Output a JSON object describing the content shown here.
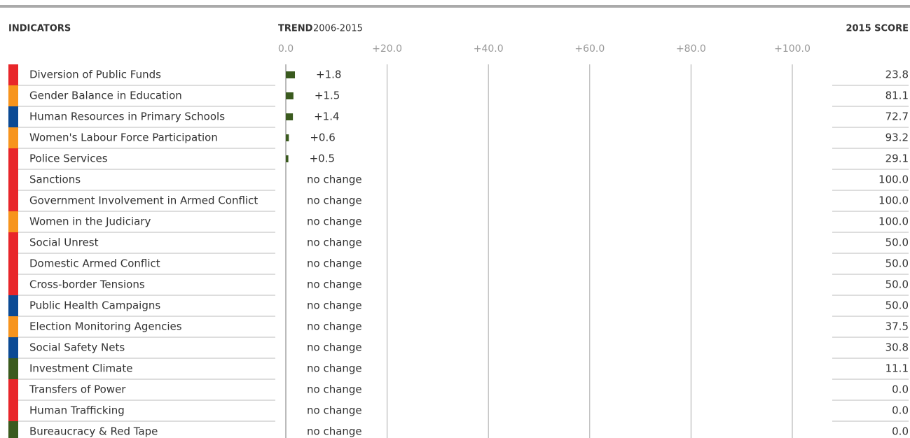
{
  "chart_data": {
    "type": "bar",
    "header_left": "INDICATORS",
    "header_trend_bold": "TREND",
    "header_trend_range": "2006-2015",
    "header_right": "2015 SCORE",
    "categories": [
      "Diversion of Public Funds",
      "Gender Balance in Education",
      "Human Resources in Primary Schools",
      "Women's Labour Force Participation",
      "Police Services",
      "Sanctions",
      "Government Involvement in Armed Conflict",
      "Women in the Judiciary",
      "Social Unrest",
      "Domestic Armed Conflict",
      "Cross-border Tensions",
      "Public Health Campaigns",
      "Election Monitoring Agencies",
      "Social Safety Nets",
      "Investment Climate",
      "Transfers of Power",
      "Human Trafficking",
      "Bureaucracy & Red Tape"
    ],
    "category_colors": [
      "#e8262a",
      "#f7941d",
      "#0b4a94",
      "#f7941d",
      "#e8262a",
      "#e8262a",
      "#e8262a",
      "#f7941d",
      "#e8262a",
      "#e8262a",
      "#e8262a",
      "#0b4a94",
      "#f7941d",
      "#0b4a94",
      "#3a5a1e",
      "#e8262a",
      "#e8262a",
      "#3a5a1e"
    ],
    "values": [
      1.8,
      1.5,
      1.4,
      0.6,
      0.5,
      0,
      0,
      0,
      0,
      0,
      0,
      0,
      0,
      0,
      0,
      0,
      0,
      0
    ],
    "value_labels": [
      "+1.8",
      "+1.5",
      "+1.4",
      "+0.6",
      "+0.5",
      "no change",
      "no change",
      "no change",
      "no change",
      "no change",
      "no change",
      "no change",
      "no change",
      "no change",
      "no change",
      "no change",
      "no change",
      "no change"
    ],
    "color": "#3a5a1e",
    "scores": [
      23.8,
      81.1,
      72.7,
      93.2,
      29.1,
      100,
      100,
      100,
      50,
      50,
      50,
      50,
      37.5,
      30.8,
      11.1,
      0,
      0,
      0
    ],
    "score_labels": [
      "23.8",
      "81.1",
      "72.7",
      "93.2",
      "29.1",
      "100.0",
      "100.0",
      "100.0",
      "50.0",
      "50.0",
      "50.0",
      "50.0",
      "37.5",
      "30.8",
      "11.1",
      "0.0",
      "0.0",
      "0.0"
    ],
    "xlim": [
      0,
      100
    ],
    "xticks": [
      {
        "value": 0,
        "label": "0.0"
      },
      {
        "value": 20,
        "label": "+20.0"
      },
      {
        "value": 40,
        "label": "+40.0"
      },
      {
        "value": 60,
        "label": "+60.0"
      },
      {
        "value": 80,
        "label": "+80.0"
      },
      {
        "value": 100,
        "label": "+100.0"
      }
    ],
    "grid": true
  }
}
